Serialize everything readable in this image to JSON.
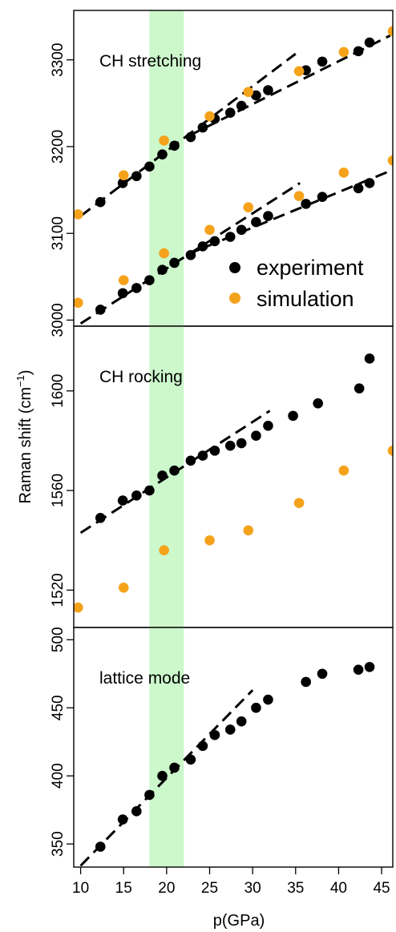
{
  "chart_data": {
    "type": "scatter",
    "xlabel": "p(GPa)",
    "ylabel": "Raman shift (cm",
    "ylabel_sup": "−1",
    "ylabel_close": ")",
    "x_range": [
      9.2,
      46.3
    ],
    "x_ticks": [
      10,
      15,
      20,
      25,
      30,
      35,
      40,
      45
    ],
    "highlight_band": {
      "x_from": 18.0,
      "x_to": 22.0,
      "color": "#ccf8cc"
    },
    "colors": {
      "experiment": "#000000",
      "simulation": "#f5a21b",
      "fit": "#000000"
    },
    "legend": {
      "placement": "bottom-right of top panel",
      "experiment": "experiment",
      "simulation": "simulation"
    },
    "panels": [
      {
        "label": "CH stretching",
        "ylim": [
          2993,
          3357
        ],
        "yticks": [
          3000,
          3100,
          3200,
          3300
        ],
        "series": [
          {
            "name": "experiment",
            "kind": "points",
            "points": [
              [
                12.3,
                3136
              ],
              [
                14.9,
                3158
              ],
              [
                16.5,
                3166
              ],
              [
                18.0,
                3177
              ],
              [
                19.5,
                3191
              ],
              [
                20.9,
                3201
              ],
              [
                22.8,
                3211
              ],
              [
                24.2,
                3222
              ],
              [
                25.6,
                3232
              ],
              [
                27.4,
                3239
              ],
              [
                28.7,
                3247
              ],
              [
                30.4,
                3259
              ],
              [
                31.8,
                3265
              ],
              [
                36.2,
                3288
              ],
              [
                38.1,
                3298
              ],
              [
                42.3,
                3310
              ],
              [
                43.6,
                3320
              ]
            ]
          },
          {
            "name": "experiment",
            "kind": "points",
            "points": [
              [
                12.3,
                3012
              ],
              [
                14.9,
                3031
              ],
              [
                16.5,
                3037
              ],
              [
                18.0,
                3046
              ],
              [
                19.5,
                3058
              ],
              [
                20.9,
                3066
              ],
              [
                22.8,
                3075
              ],
              [
                24.2,
                3085
              ],
              [
                25.6,
                3091
              ],
              [
                27.4,
                3096
              ],
              [
                28.7,
                3104
              ],
              [
                30.4,
                3113
              ],
              [
                31.8,
                3120
              ],
              [
                36.2,
                3134
              ],
              [
                38.1,
                3142
              ],
              [
                42.3,
                3152
              ],
              [
                43.6,
                3158
              ]
            ]
          },
          {
            "name": "simulation",
            "kind": "points",
            "points": [
              [
                9.7,
                3122
              ],
              [
                15.0,
                3167
              ],
              [
                19.7,
                3207
              ],
              [
                25.0,
                3235
              ],
              [
                29.5,
                3263
              ],
              [
                35.4,
                3287
              ],
              [
                40.6,
                3309
              ],
              [
                46.3,
                3333
              ]
            ]
          },
          {
            "name": "simulation",
            "kind": "points",
            "points": [
              [
                9.7,
                3020
              ],
              [
                15.0,
                3046
              ],
              [
                19.7,
                3077
              ],
              [
                25.0,
                3104
              ],
              [
                29.5,
                3130
              ],
              [
                35.4,
                3143
              ],
              [
                40.6,
                3170
              ],
              [
                46.3,
                3184
              ]
            ]
          },
          {
            "name": "fit",
            "kind": "dashed",
            "points": [
              [
                10.0,
                3120
              ],
              [
                35.0,
                3307
              ]
            ]
          },
          {
            "name": "fit",
            "kind": "dashed",
            "points": [
              [
                22.5,
                3212
              ],
              [
                46.0,
                3328
              ]
            ]
          },
          {
            "name": "fit",
            "kind": "dashed",
            "points": [
              [
                10.0,
                2996
              ],
              [
                35.5,
                3158
              ]
            ]
          },
          {
            "name": "fit",
            "kind": "dashed",
            "points": [
              [
                22.5,
                3076
              ],
              [
                46.0,
                3172
              ]
            ]
          }
        ]
      },
      {
        "label": "CH rocking",
        "ylim": [
          1505,
          1626
        ],
        "yticks": [
          1520,
          1560,
          1600
        ],
        "series": [
          {
            "name": "experiment",
            "kind": "points",
            "points": [
              [
                12.3,
                1549
              ],
              [
                14.9,
                1556
              ],
              [
                16.5,
                1558
              ],
              [
                18.0,
                1560
              ],
              [
                19.5,
                1566
              ],
              [
                20.9,
                1568
              ],
              [
                22.8,
                1572
              ],
              [
                24.2,
                1574
              ],
              [
                25.6,
                1576
              ],
              [
                27.4,
                1578
              ],
              [
                28.7,
                1579
              ],
              [
                30.4,
                1582
              ],
              [
                31.8,
                1586
              ],
              [
                34.7,
                1590
              ],
              [
                37.6,
                1595
              ],
              [
                42.4,
                1601
              ],
              [
                43.6,
                1613
              ]
            ]
          },
          {
            "name": "simulation",
            "kind": "points",
            "points": [
              [
                9.7,
                1513
              ],
              [
                15.0,
                1521
              ],
              [
                19.7,
                1536
              ],
              [
                25.0,
                1540
              ],
              [
                29.5,
                1544
              ],
              [
                35.4,
                1555
              ],
              [
                40.6,
                1568
              ],
              [
                46.3,
                1576
              ]
            ]
          },
          {
            "name": "fit",
            "kind": "dashed",
            "points": [
              [
                10.0,
                1543
              ],
              [
                32.0,
                1592
              ]
            ]
          }
        ]
      },
      {
        "label": "lattice mode",
        "ylim": [
          333,
          509
        ],
        "yticks": [
          350,
          400,
          450,
          500
        ],
        "series": [
          {
            "name": "experiment",
            "kind": "points",
            "points": [
              [
                12.3,
                348
              ],
              [
                14.9,
                368
              ],
              [
                16.5,
                374
              ],
              [
                18.0,
                386
              ],
              [
                19.5,
                400
              ],
              [
                20.9,
                406
              ],
              [
                22.8,
                412
              ],
              [
                24.2,
                422
              ],
              [
                25.6,
                430
              ],
              [
                27.4,
                434
              ],
              [
                28.7,
                440
              ],
              [
                30.4,
                450
              ],
              [
                31.8,
                456
              ],
              [
                36.2,
                469
              ],
              [
                38.1,
                475
              ],
              [
                42.3,
                478
              ],
              [
                43.6,
                480
              ]
            ]
          },
          {
            "name": "fit",
            "kind": "dashed",
            "points": [
              [
                10.0,
                334
              ],
              [
                30.0,
                463
              ]
            ]
          }
        ]
      }
    ]
  }
}
